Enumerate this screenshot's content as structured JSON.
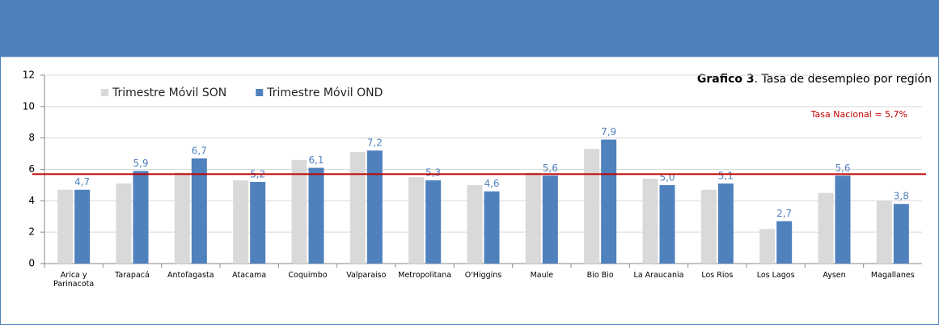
{
  "chart_data": {
    "type": "bar",
    "title": {
      "bold": "Grafico 3",
      "text": ". Tasa de desempleo por región"
    },
    "categories": [
      "Arica y Parinacota",
      "Tarapacá",
      "Antofagasta",
      "Atacama",
      "Coquimbo",
      "Valparaiso",
      "Metropolitana",
      "O'Higgins",
      "Maule",
      "Bio Bio",
      "La Araucania",
      "Los Rios",
      "Los Lagos",
      "Aysen",
      "Magallanes"
    ],
    "series": [
      {
        "name": "Trimestre Móvil SON",
        "color": "#d9d9d9",
        "values": [
          4.7,
          5.1,
          5.8,
          5.3,
          6.6,
          7.1,
          5.5,
          5.0,
          5.8,
          7.3,
          5.4,
          4.7,
          2.2,
          4.5,
          4.0
        ]
      },
      {
        "name": "Trimestre Móvil OND",
        "color": "#4f81bd",
        "values": [
          4.7,
          5.9,
          6.7,
          5.2,
          6.1,
          7.2,
          5.3,
          4.6,
          5.6,
          7.9,
          5.0,
          5.1,
          2.7,
          5.6,
          3.8
        ],
        "value_labels": [
          "4,7",
          "5,9",
          "6,7",
          "5,2",
          "6,1",
          "7,2",
          "5,3",
          "4,6",
          "5,6",
          "7,9",
          "5,0",
          "5,1",
          "2,7",
          "5,6",
          "3,8"
        ]
      }
    ],
    "reference_line": {
      "value": 5.7,
      "label": "Tasa Nacional = 5,7%",
      "color": "#c00000"
    },
    "ylim": [
      0,
      12
    ],
    "yticks": [
      0,
      2,
      4,
      6,
      8,
      10,
      12
    ],
    "grid": true,
    "legend": "top-left"
  }
}
